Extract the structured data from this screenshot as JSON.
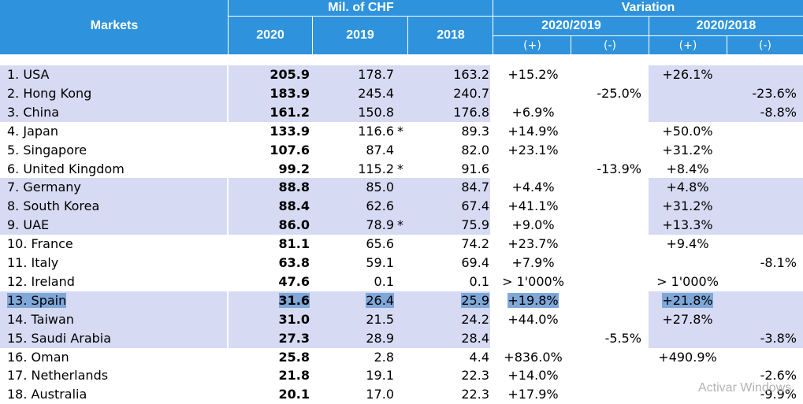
{
  "header": {
    "markets": "Markets",
    "mil_chf": "Mil. of CHF",
    "variation": "Variation",
    "y2020": "2020",
    "y2019": "2019",
    "y2018": "2018",
    "v2020_2019": "2020/2019",
    "v2020_2018": "2020/2018",
    "plus": "(+)",
    "minus": "(-)"
  },
  "rows": [
    {
      "market": "1. USA",
      "v2020": "205.9",
      "v2019": "178.7",
      "ast": "",
      "v2018": "163.2",
      "p1": "+15.2%",
      "m1": "",
      "p2": "+26.1%",
      "m2": ""
    },
    {
      "market": "2. Hong Kong",
      "v2020": "183.9",
      "v2019": "245.4",
      "ast": "",
      "v2018": "240.7",
      "p1": "",
      "m1": "-25.0%",
      "p2": "",
      "m2": "-23.6%"
    },
    {
      "market": "3. China",
      "v2020": "161.2",
      "v2019": "150.8",
      "ast": "",
      "v2018": "176.8",
      "p1": "+6.9%",
      "m1": "",
      "p2": "",
      "m2": "-8.8%"
    },
    {
      "market": "4. Japan",
      "v2020": "133.9",
      "v2019": "116.6",
      "ast": "*",
      "v2018": "89.3",
      "p1": "+14.9%",
      "m1": "",
      "p2": "+50.0%",
      "m2": ""
    },
    {
      "market": "5. Singapore",
      "v2020": "107.6",
      "v2019": "87.4",
      "ast": "",
      "v2018": "82.0",
      "p1": "+23.1%",
      "m1": "",
      "p2": "+31.2%",
      "m2": ""
    },
    {
      "market": "6. United Kingdom",
      "v2020": "99.2",
      "v2019": "115.2",
      "ast": "*",
      "v2018": "91.6",
      "p1": "",
      "m1": "-13.9%",
      "p2": "+8.4%",
      "m2": ""
    },
    {
      "market": "7. Germany",
      "v2020": "88.8",
      "v2019": "85.0",
      "ast": "",
      "v2018": "84.7",
      "p1": "+4.4%",
      "m1": "",
      "p2": "+4.8%",
      "m2": ""
    },
    {
      "market": "8. South Korea",
      "v2020": "88.4",
      "v2019": "62.6",
      "ast": "",
      "v2018": "67.4",
      "p1": "+41.1%",
      "m1": "",
      "p2": "+31.2%",
      "m2": ""
    },
    {
      "market": "9. UAE",
      "v2020": "86.0",
      "v2019": "78.9",
      "ast": "*",
      "v2018": "75.9",
      "p1": "+9.0%",
      "m1": "",
      "p2": "+13.3%",
      "m2": ""
    },
    {
      "market": "10. France",
      "v2020": "81.1",
      "v2019": "65.6",
      "ast": "",
      "v2018": "74.2",
      "p1": "+23.7%",
      "m1": "",
      "p2": "+9.4%",
      "m2": ""
    },
    {
      "market": "11. Italy",
      "v2020": "63.8",
      "v2019": "59.1",
      "ast": "",
      "v2018": "69.4",
      "p1": "+7.9%",
      "m1": "",
      "p2": "",
      "m2": "-8.1%"
    },
    {
      "market": "12. Ireland",
      "v2020": "47.6",
      "v2019": "0.1",
      "ast": "",
      "v2018": "0.1",
      "p1": "> 1'000%",
      "m1": "",
      "p2": "> 1'000%",
      "m2": ""
    },
    {
      "market": "13. Spain",
      "v2020": "31.6",
      "v2019": "26.4",
      "ast": "",
      "v2018": "25.9",
      "p1": "+19.8%",
      "m1": "",
      "p2": "+21.8%",
      "m2": "",
      "selected": true
    },
    {
      "market": "14. Taiwan",
      "v2020": "31.0",
      "v2019": "21.5",
      "ast": "",
      "v2018": "24.2",
      "p1": "+44.0%",
      "m1": "",
      "p2": "+27.8%",
      "m2": ""
    },
    {
      "market": "15. Saudi Arabia",
      "v2020": "27.3",
      "v2019": "28.9",
      "ast": "",
      "v2018": "28.4",
      "p1": "",
      "m1": "-5.5%",
      "p2": "",
      "m2": "-3.8%"
    },
    {
      "market": "16. Oman",
      "v2020": "25.8",
      "v2019": "2.8",
      "ast": "",
      "v2018": "4.4",
      "p1": "+836.0%",
      "m1": "",
      "p2": "+490.9%",
      "m2": ""
    },
    {
      "market": "17. Netherlands",
      "v2020": "21.8",
      "v2019": "19.1",
      "ast": "",
      "v2018": "22.3",
      "p1": "+14.0%",
      "m1": "",
      "p2": "",
      "m2": "-2.6%"
    },
    {
      "market": "18. Australia",
      "v2020": "20.1",
      "v2019": "17.0",
      "ast": "",
      "v2018": "22.3",
      "p1": "+17.9%",
      "m1": "",
      "p2": "",
      "m2": "-9.9%"
    }
  ],
  "colors": {
    "header_bg": "#2e93dc",
    "band_fill": "#d6daf2",
    "selection": "#7fa7d8"
  },
  "watermark": "Activar Windows"
}
